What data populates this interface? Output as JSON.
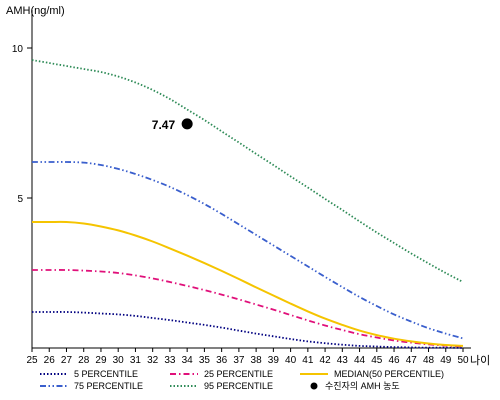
{
  "chart_data": {
    "type": "line",
    "ylabel": "AMH(ng/ml)",
    "xlabel": "나이",
    "x": [
      25,
      26,
      27,
      28,
      29,
      30,
      31,
      32,
      33,
      34,
      35,
      36,
      37,
      38,
      39,
      40,
      41,
      42,
      43,
      44,
      45,
      46,
      47,
      48,
      49,
      50
    ],
    "xlim": [
      25,
      50
    ],
    "ylim": [
      0,
      11
    ],
    "yticks": [
      5,
      10
    ],
    "grid": false,
    "legend_position": "bottom",
    "series": [
      {
        "name": "5 PERCENTILE",
        "color": "#000080",
        "style": "dotted",
        "values": [
          1.2,
          1.2,
          1.2,
          1.18,
          1.15,
          1.12,
          1.07,
          1.0,
          0.93,
          0.85,
          0.77,
          0.68,
          0.58,
          0.48,
          0.39,
          0.3,
          0.22,
          0.16,
          0.11,
          0.07,
          0.05,
          0.03,
          0.02,
          0.01,
          0.01,
          0.0
        ]
      },
      {
        "name": "25 PERCENTILE",
        "color": "#e0107a",
        "style": "dashdot",
        "values": [
          2.6,
          2.6,
          2.6,
          2.58,
          2.55,
          2.5,
          2.42,
          2.32,
          2.2,
          2.07,
          1.93,
          1.78,
          1.62,
          1.45,
          1.28,
          1.1,
          0.92,
          0.75,
          0.6,
          0.46,
          0.35,
          0.25,
          0.18,
          0.12,
          0.08,
          0.05
        ]
      },
      {
        "name": "MEDIAN(50 PERCENTILE)",
        "color": "#f5c400",
        "style": "solid",
        "values": [
          4.2,
          4.2,
          4.2,
          4.15,
          4.05,
          3.92,
          3.75,
          3.55,
          3.32,
          3.08,
          2.83,
          2.57,
          2.3,
          2.02,
          1.75,
          1.48,
          1.22,
          0.98,
          0.77,
          0.58,
          0.43,
          0.31,
          0.22,
          0.15,
          0.1,
          0.07
        ]
      },
      {
        "name": "75 PERCENTILE",
        "color": "#3a5fcd",
        "style": "dashdotdot",
        "values": [
          6.2,
          6.2,
          6.2,
          6.18,
          6.1,
          5.97,
          5.8,
          5.6,
          5.37,
          5.1,
          4.8,
          4.47,
          4.12,
          3.77,
          3.42,
          3.07,
          2.72,
          2.37,
          2.03,
          1.7,
          1.4,
          1.12,
          0.88,
          0.66,
          0.48,
          0.32
        ]
      },
      {
        "name": "95 PERCENTILE",
        "color": "#2e8b57",
        "style": "dotted",
        "values": [
          9.6,
          9.5,
          9.4,
          9.3,
          9.2,
          9.05,
          8.85,
          8.6,
          8.3,
          7.95,
          7.6,
          7.22,
          6.85,
          6.47,
          6.1,
          5.72,
          5.35,
          4.97,
          4.6,
          4.22,
          3.85,
          3.5,
          3.15,
          2.82,
          2.5,
          2.2
        ]
      }
    ],
    "marker": {
      "name": "수진자의 AMH 농도",
      "x": 34,
      "y": 7.47,
      "label": "7.47"
    },
    "legend_order": [
      "5 PERCENTILE",
      "25 PERCENTILE",
      "MEDIAN(50 PERCENTILE)",
      "75 PERCENTILE",
      "95 PERCENTILE",
      "수진자의 AMH 농도"
    ]
  }
}
